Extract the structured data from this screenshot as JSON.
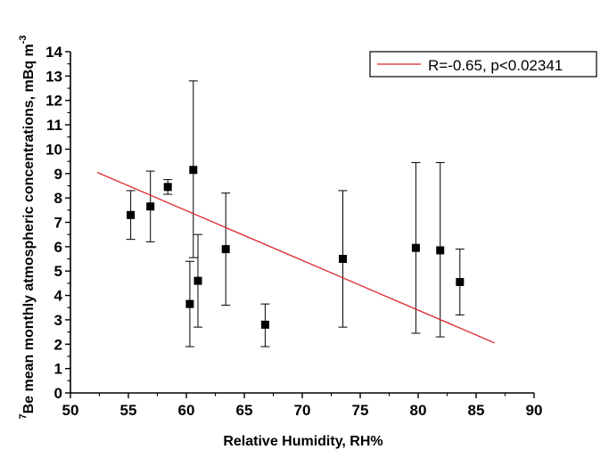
{
  "chart_data": {
    "type": "scatter",
    "xlabel": "Relative Humidity, RH%",
    "ylabel_superscript": "7",
    "ylabel": "Be mean monthly atmospheric concentrations, mBq m",
    "ylabel_unit_exponent": "-3",
    "xlim": [
      50,
      90
    ],
    "ylim": [
      0,
      14
    ],
    "x_ticks": [
      50,
      55,
      60,
      65,
      70,
      75,
      80,
      85,
      90
    ],
    "y_ticks": [
      0,
      1,
      2,
      3,
      4,
      5,
      6,
      7,
      8,
      9,
      10,
      11,
      12,
      13,
      14
    ],
    "grid": false,
    "legend_position": "top-right",
    "series": [
      {
        "marker": "square",
        "color": "#000000",
        "points": [
          {
            "x": 55.2,
            "y": 7.3,
            "y_low": 6.3,
            "y_high": 8.3
          },
          {
            "x": 56.9,
            "y": 7.65,
            "y_low": 6.2,
            "y_high": 9.1
          },
          {
            "x": 58.4,
            "y": 8.45,
            "y_low": 8.15,
            "y_high": 8.75
          },
          {
            "x": 60.3,
            "y": 3.65,
            "y_low": 1.9,
            "y_high": 5.4
          },
          {
            "x": 60.6,
            "y": 9.15,
            "y_low": 5.55,
            "y_high": 12.8
          },
          {
            "x": 61.0,
            "y": 4.6,
            "y_low": 2.7,
            "y_high": 6.5
          },
          {
            "x": 63.4,
            "y": 5.9,
            "y_low": 3.6,
            "y_high": 8.2
          },
          {
            "x": 66.8,
            "y": 2.8,
            "y_low": 1.9,
            "y_high": 3.65
          },
          {
            "x": 73.5,
            "y": 5.5,
            "y_low": 2.7,
            "y_high": 8.3
          },
          {
            "x": 79.8,
            "y": 5.95,
            "y_low": 2.45,
            "y_high": 9.45
          },
          {
            "x": 81.9,
            "y": 5.85,
            "y_low": 2.3,
            "y_high": 9.45
          },
          {
            "x": 83.6,
            "y": 4.55,
            "y_low": 3.2,
            "y_high": 5.9
          }
        ]
      },
      {
        "name": "R=-0.65, p<0.02341",
        "type": "line",
        "color": "#e0262d",
        "x": [
          52.3,
          86.6
        ],
        "y": [
          9.05,
          2.05
        ]
      }
    ]
  }
}
